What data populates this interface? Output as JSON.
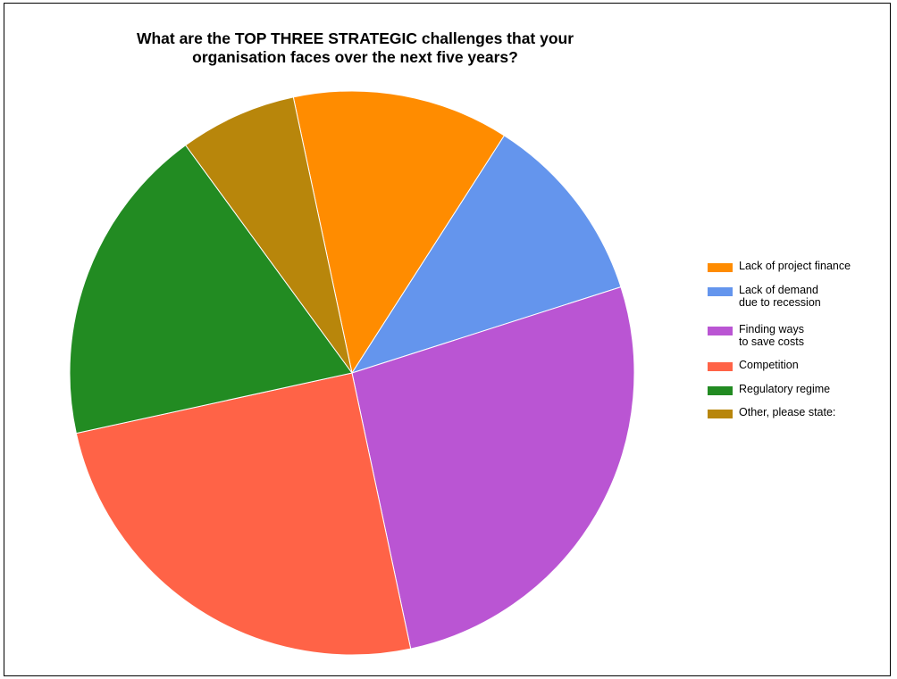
{
  "chart_data": {
    "type": "pie",
    "title": "What are the TOP THREE STRATEGIC challenges that your organisation faces over the next five years?",
    "title_lines": [
      "What are the TOP THREE STRATEGIC challenges that your",
      "organisation faces over the next five years?"
    ],
    "legend_position": "right",
    "slices": [
      {
        "label": "Lack of project finance",
        "value": 12.4,
        "color": "#FF8C00"
      },
      {
        "label": "Lack of demand\ndue to recession",
        "value": 11.0,
        "color": "#6495ED"
      },
      {
        "label": "Finding ways\nto save costs",
        "value": 26.6,
        "color": "#BA55D3"
      },
      {
        "label": "Competition",
        "value": 24.9,
        "color": "#FF6347"
      },
      {
        "label": "Regulatory regime",
        "value": 18.4,
        "color": "#228B22"
      },
      {
        "label": "Other, please state:",
        "value": 6.7,
        "color": "#B8860B"
      }
    ]
  }
}
